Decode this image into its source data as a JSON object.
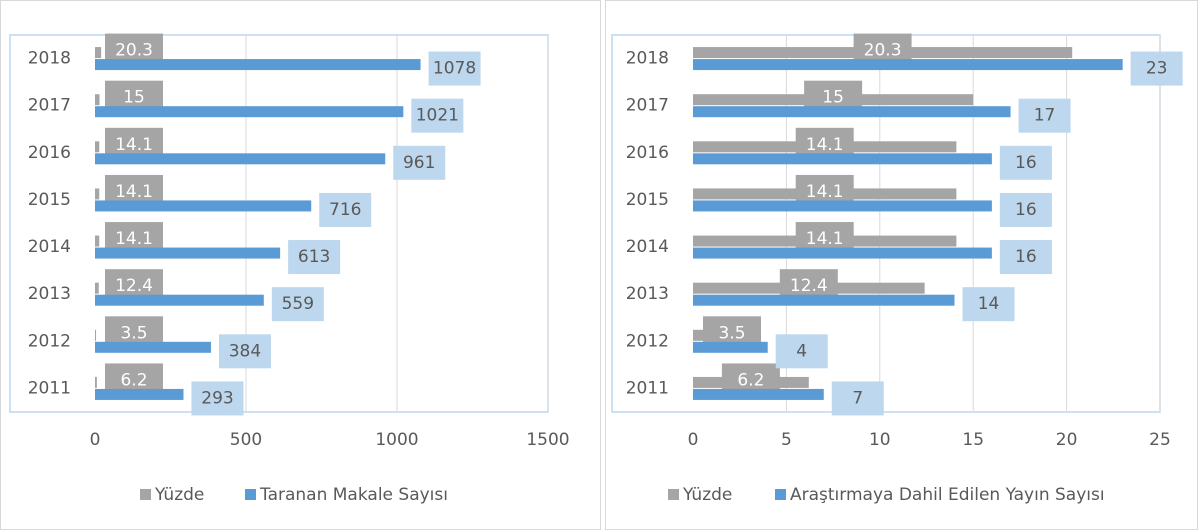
{
  "chart_data": [
    {
      "type": "hbar",
      "categories": [
        "2018",
        "2017",
        "2016",
        "2015",
        "2014",
        "2013",
        "2012",
        "2011"
      ],
      "series": [
        {
          "name": "Yüzde",
          "color": "#a5a5a5",
          "values": [
            20.3,
            15,
            14.1,
            14.1,
            14.1,
            12.4,
            3.5,
            6.2
          ]
        },
        {
          "name": "Taranan Makale Sayısı",
          "color": "#5b9bd5",
          "values": [
            1078,
            1021,
            961,
            716,
            613,
            559,
            384,
            293
          ]
        }
      ],
      "xlim": [
        0,
        1500
      ],
      "xticks": [
        0,
        500,
        1000,
        1500
      ],
      "grid": true,
      "legend": "bottom"
    },
    {
      "type": "hbar",
      "categories": [
        "2018",
        "2017",
        "2016",
        "2015",
        "2014",
        "2013",
        "2012",
        "2011"
      ],
      "series": [
        {
          "name": "Yüzde",
          "color": "#a5a5a5",
          "values": [
            20.3,
            15,
            14.1,
            14.1,
            14.1,
            12.4,
            3.5,
            6.2
          ]
        },
        {
          "name": "Araştırmaya Dahil Edilen Yayın Sayısı",
          "color": "#5b9bd5",
          "values": [
            23,
            17,
            16,
            16,
            16,
            14,
            4,
            7
          ]
        }
      ],
      "xlim": [
        0,
        25
      ],
      "xticks": [
        0,
        5,
        10,
        15,
        20,
        25
      ],
      "grid": true,
      "legend": "bottom"
    }
  ]
}
